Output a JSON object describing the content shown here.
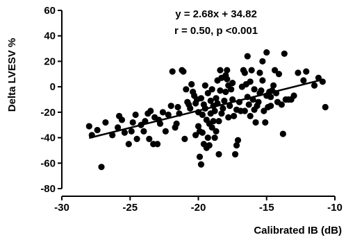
{
  "chart_data": {
    "type": "scatter",
    "title": "",
    "xlabel": "Calibrated IB (dB)",
    "ylabel": "Delta LVESV %",
    "xlim": [
      -30,
      -10
    ],
    "ylim": [
      -80,
      60
    ],
    "xticks": [
      -30,
      -25,
      -20,
      -15,
      -10
    ],
    "yticks": [
      60,
      40,
      20,
      0,
      -20,
      -40,
      -60,
      -80
    ],
    "xtick_labels": [
      "-30",
      "-25",
      "-20",
      "-15",
      "-10"
    ],
    "ytick_labels": [
      "60",
      "40",
      "20",
      "0",
      "-20",
      "-40",
      "-60",
      "-80"
    ],
    "grid": false,
    "annotations": [
      "y = 2.68x + 34.82",
      "r = 0.50, p <0.001"
    ],
    "regression": {
      "slope": 2.68,
      "intercept": 34.82,
      "x_range": [
        -28,
        -11
      ]
    },
    "points": [
      [
        -28.0,
        -31
      ],
      [
        -27.8,
        -38
      ],
      [
        -27.4,
        -34
      ],
      [
        -27.1,
        -63
      ],
      [
        -26.8,
        -28
      ],
      [
        -26.3,
        -38
      ],
      [
        -25.9,
        -32
      ],
      [
        -25.8,
        -23
      ],
      [
        -25.6,
        -26
      ],
      [
        -25.4,
        -36
      ],
      [
        -25.1,
        -45
      ],
      [
        -24.9,
        -35
      ],
      [
        -24.8,
        -28
      ],
      [
        -24.6,
        -22
      ],
      [
        -24.5,
        -41
      ],
      [
        -24.2,
        -30
      ],
      [
        -24.0,
        -35
      ],
      [
        -23.9,
        -27
      ],
      [
        -23.7,
        -21
      ],
      [
        -23.6,
        -41
      ],
      [
        -23.5,
        -19
      ],
      [
        -23.3,
        -45
      ],
      [
        -23.2,
        -24
      ],
      [
        -23.0,
        -45
      ],
      [
        -22.9,
        -26
      ],
      [
        -22.8,
        -29
      ],
      [
        -22.6,
        -20
      ],
      [
        -22.4,
        -35
      ],
      [
        -22.2,
        -22
      ],
      [
        -22.0,
        -15
      ],
      [
        -21.9,
        12
      ],
      [
        -21.7,
        -32
      ],
      [
        -21.6,
        -29
      ],
      [
        -21.5,
        -16
      ],
      [
        -21.4,
        -21
      ],
      [
        -21.2,
        13
      ],
      [
        -21.1,
        12
      ],
      [
        -21.0,
        -41
      ],
      [
        -20.9,
        -2
      ],
      [
        -20.8,
        -12
      ],
      [
        -20.7,
        -14
      ],
      [
        -20.6,
        -17
      ],
      [
        -20.5,
        2
      ],
      [
        -20.4,
        -4
      ],
      [
        -20.3,
        -7
      ],
      [
        -20.2,
        -13
      ],
      [
        -20.2,
        -38
      ],
      [
        -20.1,
        -10
      ],
      [
        -20.0,
        -20
      ],
      [
        -20.0,
        -31
      ],
      [
        -19.9,
        -35
      ],
      [
        -19.9,
        -55
      ],
      [
        -19.8,
        -61
      ],
      [
        -19.8,
        -9
      ],
      [
        -19.7,
        -22
      ],
      [
        -19.7,
        -36
      ],
      [
        -19.6,
        -45
      ],
      [
        -19.6,
        -14
      ],
      [
        -19.5,
        1
      ],
      [
        -19.5,
        -17
      ],
      [
        -19.4,
        -26
      ],
      [
        -19.4,
        -48
      ],
      [
        -19.3,
        -5
      ],
      [
        -19.3,
        -40
      ],
      [
        -19.2,
        -46
      ],
      [
        -19.2,
        -29
      ],
      [
        -19.1,
        -21
      ],
      [
        -19.1,
        -11
      ],
      [
        -19.0,
        -2
      ],
      [
        -19.0,
        -32
      ],
      [
        -18.9,
        -15
      ],
      [
        -18.9,
        -27
      ],
      [
        -18.8,
        -19
      ],
      [
        -18.8,
        -40
      ],
      [
        -18.7,
        -9
      ],
      [
        -18.7,
        -35
      ],
      [
        -18.6,
        5
      ],
      [
        -18.6,
        -13
      ],
      [
        -18.5,
        -27
      ],
      [
        -18.5,
        -53
      ],
      [
        -18.4,
        13
      ],
      [
        -18.4,
        -3
      ],
      [
        -18.3,
        -21
      ],
      [
        -18.3,
        7
      ],
      [
        -18.2,
        -17
      ],
      [
        -18.1,
        -11
      ],
      [
        -18.0,
        9
      ],
      [
        -18.0,
        -4
      ],
      [
        -17.9,
        6
      ],
      [
        -17.9,
        13
      ],
      [
        -17.8,
        1
      ],
      [
        -17.8,
        -24
      ],
      [
        -17.7,
        -15
      ],
      [
        -17.6,
        -2
      ],
      [
        -17.5,
        3
      ],
      [
        -17.5,
        -10
      ],
      [
        -17.4,
        -23
      ],
      [
        -17.3,
        -53
      ],
      [
        -17.2,
        -46
      ],
      [
        -17.2,
        -18
      ],
      [
        -17.1,
        -42
      ],
      [
        -17.0,
        -12
      ],
      [
        -16.9,
        -19
      ],
      [
        -16.8,
        0
      ],
      [
        -16.7,
        13
      ],
      [
        -16.6,
        -19
      ],
      [
        -16.6,
        11
      ],
      [
        -16.5,
        2
      ],
      [
        -16.4,
        -8
      ],
      [
        -16.4,
        24
      ],
      [
        -16.3,
        -14
      ],
      [
        -16.2,
        -23
      ],
      [
        -16.2,
        4
      ],
      [
        -16.1,
        13
      ],
      [
        -16.0,
        -10
      ],
      [
        -15.9,
        -18
      ],
      [
        -15.9,
        -2
      ],
      [
        -15.8,
        -28
      ],
      [
        -15.7,
        -15
      ],
      [
        -15.6,
        -12
      ],
      [
        -15.5,
        -5
      ],
      [
        -15.5,
        11
      ],
      [
        -15.4,
        -3
      ],
      [
        -15.3,
        5
      ],
      [
        -15.3,
        20
      ],
      [
        -15.2,
        -19
      ],
      [
        -15.1,
        -28
      ],
      [
        -15.0,
        -7
      ],
      [
        -15.0,
        27
      ],
      [
        -14.9,
        -16
      ],
      [
        -14.8,
        -4
      ],
      [
        -14.7,
        -15
      ],
      [
        -14.7,
        -8
      ],
      [
        -14.6,
        -3
      ],
      [
        -14.5,
        1
      ],
      [
        -14.4,
        13
      ],
      [
        -14.3,
        -5
      ],
      [
        -14.2,
        -12
      ],
      [
        -14.1,
        10
      ],
      [
        -13.9,
        -14
      ],
      [
        -13.8,
        -37
      ],
      [
        -13.7,
        26
      ],
      [
        -13.6,
        -10
      ],
      [
        -13.4,
        -10
      ],
      [
        -13.2,
        -10
      ],
      [
        -13.0,
        -7
      ],
      [
        -12.7,
        11
      ],
      [
        -12.3,
        5
      ],
      [
        -12.1,
        12
      ],
      [
        -11.5,
        1
      ],
      [
        -11.2,
        7
      ],
      [
        -10.9,
        4
      ],
      [
        -10.7,
        -16
      ]
    ]
  }
}
